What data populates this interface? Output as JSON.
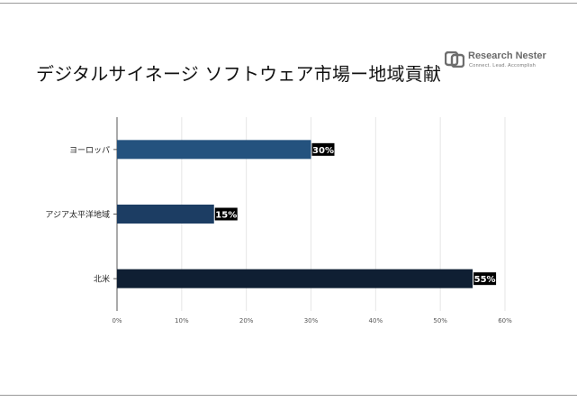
{
  "title": "デジタルサイネージ ソフトウェア市場ー地域貢献",
  "logo": {
    "name": "Research Nester",
    "tagline": "Connect. Lead. Accomplish"
  },
  "chart_data": {
    "type": "bar",
    "orientation": "horizontal",
    "categories": [
      "ヨーロッパ",
      "アジア太平洋地域",
      "北米"
    ],
    "values": [
      30,
      15,
      55
    ],
    "data_labels": [
      "30%",
      "15%",
      "55%"
    ],
    "colors": [
      "#24527e",
      "#1c3d63",
      "#0f1f33"
    ],
    "xlim": [
      0,
      60
    ],
    "xticks": [
      "0%",
      "10%",
      "20%",
      "30%",
      "40%",
      "50%",
      "60%"
    ],
    "grid": true,
    "legend": "none"
  }
}
